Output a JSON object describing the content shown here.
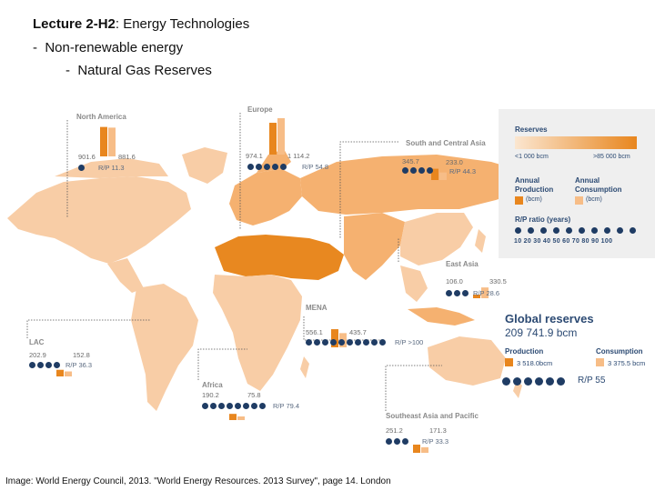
{
  "header": {
    "title_bold": "Lecture 2-H2",
    "title_rest": ": Energy Technologies",
    "bullet": "-",
    "subtitle1": "Non-renewable energy",
    "subtitle2": "Natural Gas Reserves"
  },
  "regions": {
    "north_america": {
      "name": "North America",
      "production": "901.6",
      "consumption": "881.6",
      "rp": "R/P 11.3",
      "rp_value": 11.3
    },
    "europe": {
      "name": "Europe",
      "production": "974.1",
      "consumption": "1 114.2",
      "rp": "R/P 54.8",
      "rp_value": 54.8
    },
    "south_central_asia": {
      "name": "South and Central Asia",
      "production": "345.7",
      "consumption": "233.0",
      "rp": "R/P 44.3",
      "rp_value": 44.3
    },
    "east_asia": {
      "name": "East Asia",
      "production": "106.0",
      "consumption": "330.5",
      "rp": "R/P 28.6",
      "rp_value": 28.6
    },
    "mena": {
      "name": "MENA",
      "production": "556.1",
      "consumption": "435.7",
      "rp": "R/P >100",
      "rp_value": 100
    },
    "lac": {
      "name": "LAC",
      "production": "202.9",
      "consumption": "152.8",
      "rp": "R/P 36.3",
      "rp_value": 36.3
    },
    "africa": {
      "name": "Africa",
      "production": "190.2",
      "consumption": "75.8",
      "rp": "R/P 79.4",
      "rp_value": 79.4
    },
    "southeast_asia_pacific": {
      "name": "Southeast Asia and Pacific",
      "production": "251.2",
      "consumption": "171.3",
      "rp": "R/P 33.3",
      "rp_value": 33.3
    }
  },
  "legend": {
    "reserves_title": "Reserves",
    "low": "<1 000 bcm",
    "high": ">85 000 bcm",
    "prod_title1": "Annual",
    "prod_title2": "Production",
    "prod_unit": "(bcm)",
    "cons_title1": "Annual",
    "cons_title2": "Consumption",
    "cons_unit": "(bcm)",
    "rp_title": "R/P ratio (years)",
    "scale": "10  20  30  40  50  60  70  80  90  100"
  },
  "global": {
    "title": "Global reserves",
    "value": "209 741.9 bcm",
    "production_label": "Production",
    "production_value": "3 518.0bcm",
    "consumption_label": "Consumption",
    "consumption_value": "3 375.5 bcm",
    "rp": "R/P 55",
    "rp_value": 55
  },
  "colors": {
    "production": "#e8861e",
    "consumption": "#f7bd87",
    "land_light": "#f8cda6",
    "land_mid": "#f5b170",
    "land_dark": "#e88820",
    "dot": "#1f3c64"
  },
  "caption": "Image: World Energy Council, 2013. \"World Energy Resources. 2013 Survey\", page 14. London"
}
